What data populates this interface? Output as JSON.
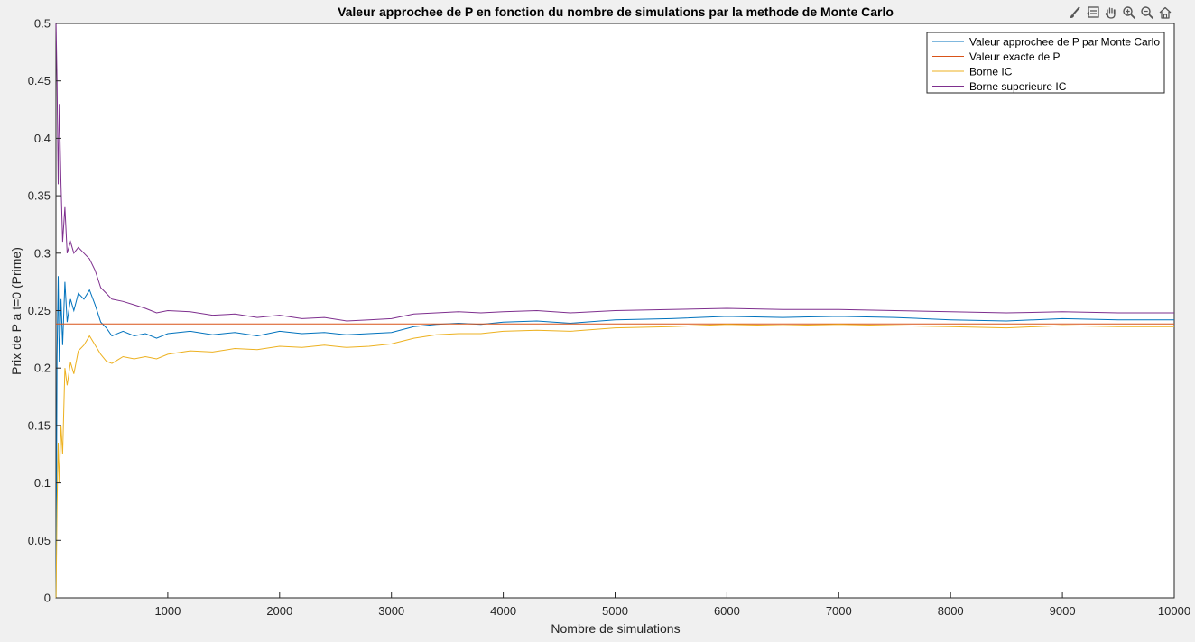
{
  "chart_data": {
    "type": "line",
    "title": "Valeur approchee de P en fonction du nombre de simulations par la methode de Monte Carlo",
    "xlabel": "Nombre de simulations",
    "ylabel": "Prix de P a t=0 (Prime)",
    "xlim": [
      0,
      10000
    ],
    "ylim": [
      0,
      0.5
    ],
    "xticks": [
      1000,
      2000,
      3000,
      4000,
      5000,
      6000,
      7000,
      8000,
      9000,
      10000
    ],
    "yticks": [
      0,
      0.05,
      0.1,
      0.15,
      0.2,
      0.25,
      0.3,
      0.35,
      0.4,
      0.45,
      0.5
    ],
    "grid": false,
    "legend_position": "top-right",
    "series": [
      {
        "name": "Valeur approchee de P par Monte Carlo",
        "color": "#0072BD",
        "x": [
          1,
          10,
          20,
          30,
          45,
          60,
          80,
          100,
          130,
          160,
          200,
          250,
          300,
          350,
          400,
          450,
          500,
          600,
          700,
          800,
          900,
          1000,
          1200,
          1400,
          1600,
          1800,
          2000,
          2200,
          2400,
          2600,
          2800,
          3000,
          3200,
          3400,
          3600,
          3800,
          4000,
          4300,
          4600,
          5000,
          5500,
          6000,
          6500,
          7000,
          7500,
          8000,
          8500,
          9000,
          9500,
          10000
        ],
        "y": [
          0.0,
          0.21,
          0.28,
          0.205,
          0.26,
          0.22,
          0.275,
          0.24,
          0.26,
          0.25,
          0.265,
          0.26,
          0.268,
          0.255,
          0.24,
          0.235,
          0.228,
          0.232,
          0.228,
          0.23,
          0.226,
          0.23,
          0.232,
          0.229,
          0.231,
          0.228,
          0.232,
          0.23,
          0.231,
          0.229,
          0.23,
          0.231,
          0.236,
          0.238,
          0.239,
          0.238,
          0.24,
          0.241,
          0.239,
          0.242,
          0.243,
          0.245,
          0.244,
          0.245,
          0.244,
          0.242,
          0.241,
          0.243,
          0.242,
          0.242
        ]
      },
      {
        "name": "Valeur exacte de P",
        "color": "#D95319",
        "x": [
          0,
          10000
        ],
        "y": [
          0.2385,
          0.2385
        ]
      },
      {
        "name": "Borne IC",
        "color": "#EDB120",
        "x": [
          1,
          10,
          20,
          30,
          45,
          60,
          80,
          100,
          130,
          160,
          200,
          250,
          300,
          350,
          400,
          450,
          500,
          600,
          700,
          800,
          900,
          1000,
          1200,
          1400,
          1600,
          1800,
          2000,
          2200,
          2400,
          2600,
          2800,
          3000,
          3200,
          3400,
          3600,
          3800,
          4000,
          4300,
          4600,
          5000,
          5500,
          6000,
          6500,
          7000,
          7500,
          8000,
          8500,
          9000,
          9500,
          10000
        ],
        "y": [
          0.0,
          0.08,
          0.135,
          0.1,
          0.15,
          0.125,
          0.2,
          0.185,
          0.205,
          0.195,
          0.215,
          0.22,
          0.228,
          0.22,
          0.212,
          0.206,
          0.204,
          0.21,
          0.208,
          0.21,
          0.208,
          0.212,
          0.215,
          0.214,
          0.217,
          0.216,
          0.219,
          0.218,
          0.22,
          0.218,
          0.219,
          0.221,
          0.226,
          0.229,
          0.23,
          0.23,
          0.232,
          0.233,
          0.232,
          0.235,
          0.236,
          0.238,
          0.237,
          0.238,
          0.237,
          0.236,
          0.235,
          0.237,
          0.236,
          0.236
        ]
      },
      {
        "name": "Borne superieure IC",
        "color": "#7E2F8E",
        "x": [
          1,
          10,
          20,
          30,
          45,
          60,
          80,
          100,
          130,
          160,
          200,
          250,
          300,
          350,
          400,
          450,
          500,
          600,
          700,
          800,
          900,
          1000,
          1200,
          1400,
          1600,
          1800,
          2000,
          2200,
          2400,
          2600,
          2800,
          3000,
          3200,
          3400,
          3600,
          3800,
          4000,
          4300,
          4600,
          5000,
          5500,
          6000,
          6500,
          7000,
          7500,
          8000,
          8500,
          9000,
          9500,
          10000
        ],
        "y": [
          0.5,
          0.45,
          0.36,
          0.43,
          0.36,
          0.31,
          0.34,
          0.3,
          0.31,
          0.3,
          0.305,
          0.3,
          0.295,
          0.285,
          0.27,
          0.265,
          0.26,
          0.258,
          0.255,
          0.252,
          0.248,
          0.25,
          0.249,
          0.246,
          0.247,
          0.244,
          0.246,
          0.243,
          0.244,
          0.241,
          0.242,
          0.243,
          0.247,
          0.248,
          0.249,
          0.248,
          0.249,
          0.25,
          0.248,
          0.25,
          0.251,
          0.252,
          0.251,
          0.251,
          0.25,
          0.249,
          0.248,
          0.249,
          0.248,
          0.248
        ]
      }
    ]
  },
  "toolbar": {
    "icons": [
      "brush-icon",
      "data-tip-icon",
      "pan-icon",
      "zoom-in-icon",
      "zoom-out-icon",
      "home-icon"
    ]
  },
  "colors": {
    "figure_bg": "#f0f0f0",
    "axes_bg": "#ffffff",
    "axis": "#262626"
  }
}
